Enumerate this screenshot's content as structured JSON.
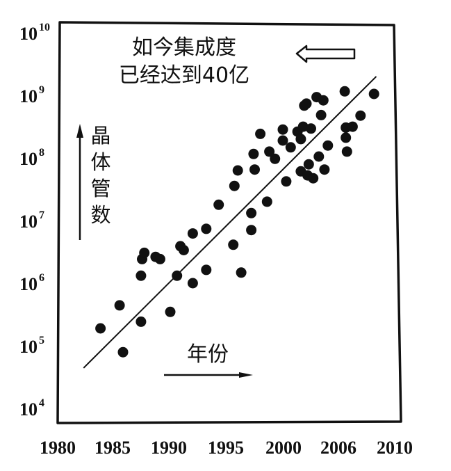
{
  "chart_data": {
    "type": "scatter",
    "title": "",
    "annotation": {
      "line1": "如今集成度",
      "line2": "已经达到40亿",
      "arrow": "left-pointing hollow arrow"
    },
    "ylabel": "晶体管数",
    "xlabel": "年份",
    "yscale": "log",
    "ylim": [
      10000,
      10000000000
    ],
    "xlim": [
      1980,
      2010
    ],
    "y_ticks": [
      {
        "base": "10",
        "exp": "10",
        "value": 10000000000
      },
      {
        "base": "10",
        "exp": "9",
        "value": 1000000000
      },
      {
        "base": "10",
        "exp": "8",
        "value": 100000000
      },
      {
        "base": "10",
        "exp": "7",
        "value": 10000000
      },
      {
        "base": "10",
        "exp": "6",
        "value": 1000000
      },
      {
        "base": "10",
        "exp": "5",
        "value": 100000
      },
      {
        "base": "10",
        "exp": "4",
        "value": 10000
      }
    ],
    "x_ticks": [
      "1980",
      "1985",
      "1990",
      "1995",
      "2000",
      "2006",
      "2010"
    ],
    "grid": false,
    "legend": null,
    "trend_line": {
      "type": "log-linear fit",
      "start": {
        "x": 1982.3,
        "y": 42000
      },
      "end": {
        "x": 2008.3,
        "y": 1900000000
      }
    },
    "points": [
      {
        "x": 1983.8,
        "y": 180000
      },
      {
        "x": 1985.5,
        "y": 420000
      },
      {
        "x": 1985.8,
        "y": 75000
      },
      {
        "x": 1987.4,
        "y": 1250000
      },
      {
        "x": 1987.4,
        "y": 230000
      },
      {
        "x": 1987.5,
        "y": 2300000
      },
      {
        "x": 1987.7,
        "y": 2900000
      },
      {
        "x": 1988.7,
        "y": 2500000
      },
      {
        "x": 1989.1,
        "y": 2300000
      },
      {
        "x": 1990.0,
        "y": 330000
      },
      {
        "x": 1990.6,
        "y": 1250000
      },
      {
        "x": 1990.9,
        "y": 3700000
      },
      {
        "x": 1991.2,
        "y": 3200000
      },
      {
        "x": 1992.0,
        "y": 950000
      },
      {
        "x": 1992.0,
        "y": 5900000
      },
      {
        "x": 1993.2,
        "y": 1550000
      },
      {
        "x": 1993.2,
        "y": 7000000
      },
      {
        "x": 1994.3,
        "y": 17000000
      },
      {
        "x": 1995.6,
        "y": 3900000
      },
      {
        "x": 1995.7,
        "y": 34000000
      },
      {
        "x": 1996.0,
        "y": 60000000
      },
      {
        "x": 1996.3,
        "y": 1400000
      },
      {
        "x": 1997.2,
        "y": 12500000
      },
      {
        "x": 1997.2,
        "y": 6700000
      },
      {
        "x": 1997.4,
        "y": 110000000
      },
      {
        "x": 1997.5,
        "y": 62000000
      },
      {
        "x": 1998.0,
        "y": 230000000
      },
      {
        "x": 1998.6,
        "y": 19000000
      },
      {
        "x": 1998.8,
        "y": 120000000
      },
      {
        "x": 1999.3,
        "y": 92000000
      },
      {
        "x": 2000.0,
        "y": 270000000
      },
      {
        "x": 2000.0,
        "y": 180000000
      },
      {
        "x": 2000.3,
        "y": 40000000
      },
      {
        "x": 2000.7,
        "y": 140000000
      },
      {
        "x": 2001.3,
        "y": 250000000
      },
      {
        "x": 2001.6,
        "y": 190000000
      },
      {
        "x": 2001.6,
        "y": 58000000
      },
      {
        "x": 2001.8,
        "y": 300000000
      },
      {
        "x": 2001.9,
        "y": 650000000
      },
      {
        "x": 2002.1,
        "y": 700000000
      },
      {
        "x": 2002.2,
        "y": 50000000
      },
      {
        "x": 2002.3,
        "y": 75000000
      },
      {
        "x": 2002.5,
        "y": 280000000
      },
      {
        "x": 2002.7,
        "y": 45000000
      },
      {
        "x": 2003.0,
        "y": 890000000
      },
      {
        "x": 2003.2,
        "y": 100000000
      },
      {
        "x": 2003.4,
        "y": 460000000
      },
      {
        "x": 2003.6,
        "y": 790000000
      },
      {
        "x": 2003.7,
        "y": 62000000
      },
      {
        "x": 2004.0,
        "y": 150000000
      },
      {
        "x": 2005.5,
        "y": 1100000000
      },
      {
        "x": 2005.6,
        "y": 290000000
      },
      {
        "x": 2005.6,
        "y": 200000000
      },
      {
        "x": 2005.7,
        "y": 120000000
      },
      {
        "x": 2006.2,
        "y": 300000000
      },
      {
        "x": 2006.9,
        "y": 450000000
      },
      {
        "x": 2008.1,
        "y": 1000000000
      }
    ]
  },
  "labels": {
    "annotation_line1": "如今集成度",
    "annotation_line2": "已经达到40亿",
    "ylabel_chars": [
      "晶",
      "体",
      "管",
      "数"
    ],
    "xlabel": "年份"
  },
  "colors": {
    "ink": "#111111",
    "background": "#ffffff"
  }
}
